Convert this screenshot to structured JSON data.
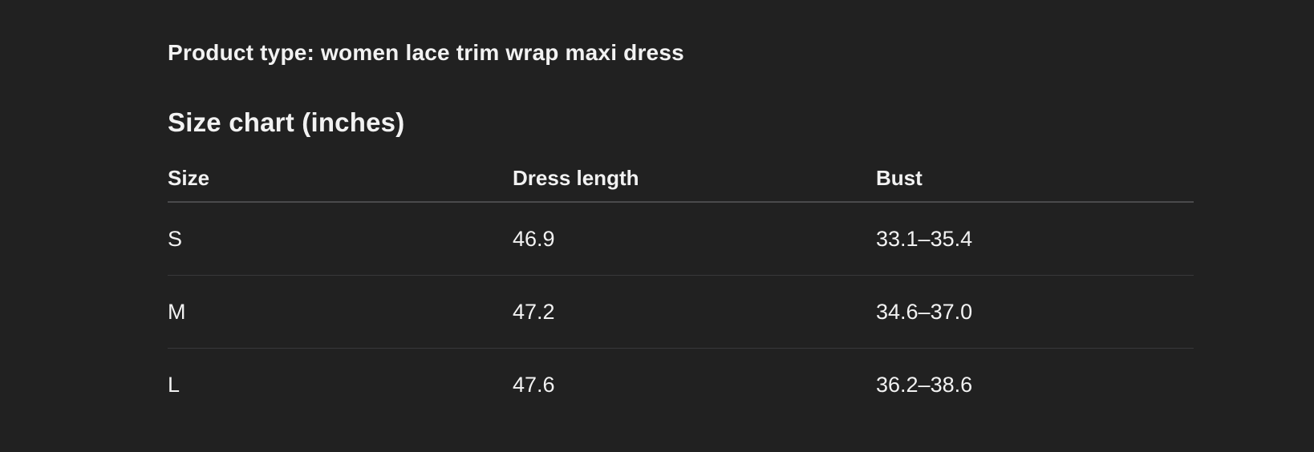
{
  "theme": {
    "background": "#212121",
    "text": "#f2f2f2",
    "header_divider": "#4a4a4c",
    "row_divider": "#38383a"
  },
  "product": {
    "type_line": "Product type: women lace trim wrap maxi dress"
  },
  "size_chart": {
    "title": "Size chart (inches)",
    "columns": [
      "Size",
      "Dress length",
      "Bust"
    ],
    "rows": [
      {
        "size": "S",
        "dress_length": "46.9",
        "bust": "33.1–35.4"
      },
      {
        "size": "M",
        "dress_length": "47.2",
        "bust": "34.6–37.0"
      },
      {
        "size": "L",
        "dress_length": "47.6",
        "bust": "36.2–38.6"
      }
    ]
  }
}
